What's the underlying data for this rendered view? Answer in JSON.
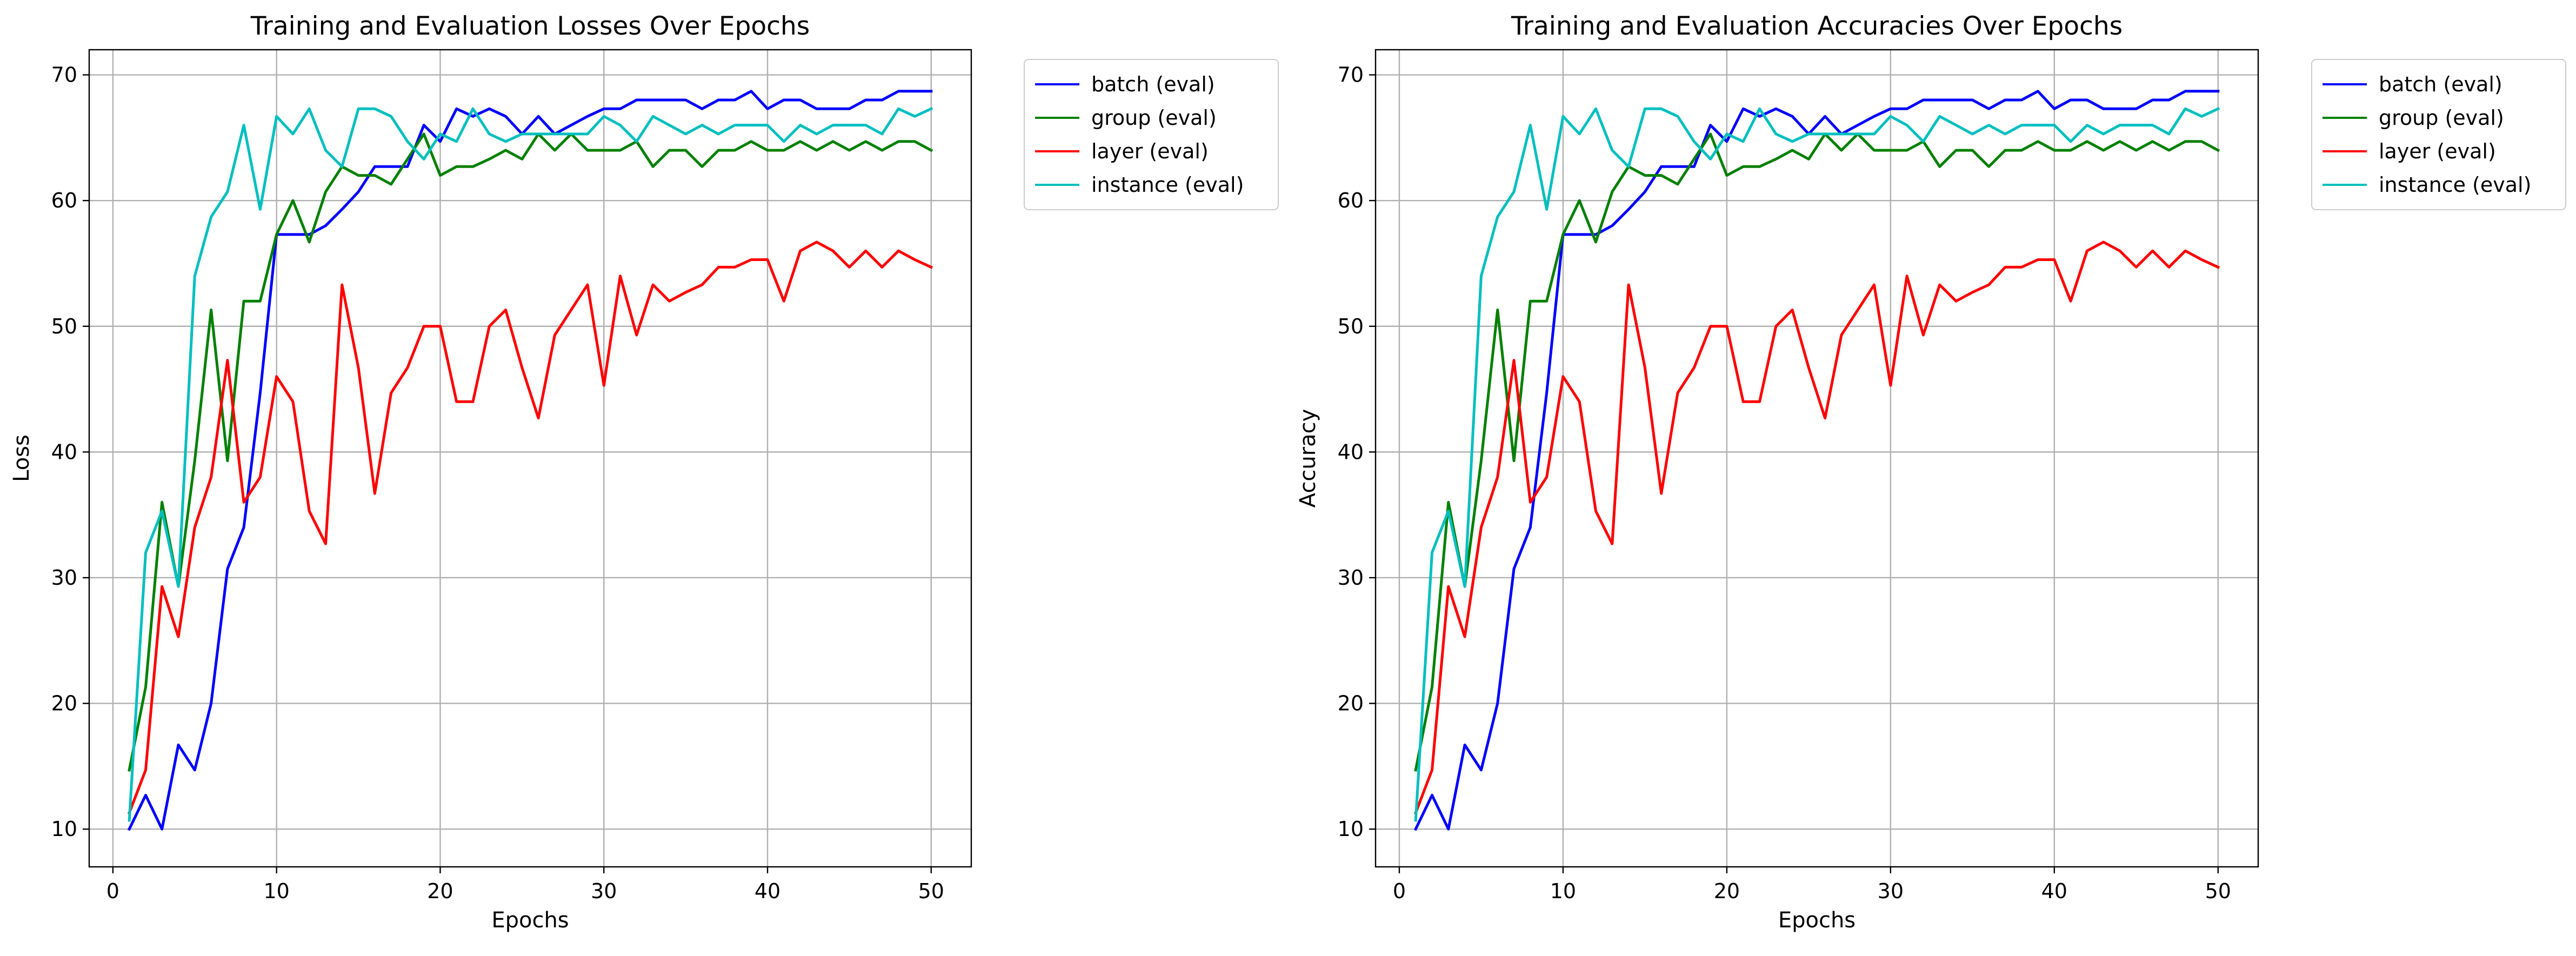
{
  "chart_data": [
    {
      "type": "line",
      "title": "Training and Evaluation Losses Over Epochs",
      "xlabel": "Epochs",
      "ylabel": "Loss",
      "xlim": [
        -1.45,
        52.45
      ],
      "ylim": [
        7,
        72
      ],
      "xticks": [
        0,
        10,
        20,
        30,
        40,
        50
      ],
      "yticks": [
        10,
        20,
        30,
        40,
        50,
        60,
        70
      ],
      "grid": true,
      "legend": "outside-upper-right",
      "x": [
        1,
        2,
        3,
        4,
        5,
        6,
        7,
        8,
        9,
        10,
        11,
        12,
        13,
        14,
        15,
        16,
        17,
        18,
        19,
        20,
        21,
        22,
        23,
        24,
        25,
        26,
        27,
        28,
        29,
        30,
        31,
        32,
        33,
        34,
        35,
        36,
        37,
        38,
        39,
        40,
        41,
        42,
        43,
        44,
        45,
        46,
        47,
        48,
        49,
        50
      ],
      "series": [
        {
          "name": "batch (eval)",
          "color": "#0000ff",
          "values": [
            10.0,
            12.7,
            10.0,
            16.7,
            14.7,
            20.0,
            30.7,
            34.0,
            44.7,
            57.3,
            57.3,
            57.3,
            58.0,
            59.3,
            60.7,
            62.7,
            62.7,
            62.7,
            66.0,
            64.7,
            67.3,
            66.7,
            67.3,
            66.7,
            65.3,
            66.7,
            65.3,
            66.0,
            66.7,
            67.3,
            67.3,
            68.0,
            68.0,
            68.0,
            68.0,
            67.3,
            68.0,
            68.0,
            68.7,
            67.3,
            68.0,
            68.0,
            67.3,
            67.3,
            67.3,
            68.0,
            68.0,
            68.7,
            68.7,
            68.7
          ]
        },
        {
          "name": "group (eval)",
          "color": "#008000",
          "values": [
            14.7,
            21.3,
            36.0,
            29.3,
            39.3,
            51.3,
            39.3,
            52.0,
            52.0,
            57.3,
            60.0,
            56.7,
            60.7,
            62.7,
            62.0,
            62.0,
            61.3,
            63.3,
            65.3,
            62.0,
            62.7,
            62.7,
            63.3,
            64.0,
            63.3,
            65.3,
            64.0,
            65.3,
            64.0,
            64.0,
            64.0,
            64.7,
            62.7,
            64.0,
            64.0,
            62.7,
            64.0,
            64.0,
            64.7,
            64.0,
            64.0,
            64.7,
            64.0,
            64.7,
            64.0,
            64.7,
            64.0,
            64.7,
            64.7,
            64.0
          ]
        },
        {
          "name": "layer (eval)",
          "color": "#ff0000",
          "values": [
            11.3,
            14.7,
            29.3,
            25.3,
            34.0,
            38.0,
            47.3,
            36.0,
            38.0,
            46.0,
            44.0,
            35.3,
            32.7,
            53.3,
            46.7,
            36.7,
            44.7,
            46.7,
            50.0,
            50.0,
            44.0,
            44.0,
            50.0,
            51.3,
            46.7,
            42.7,
            49.3,
            51.3,
            53.3,
            45.3,
            54.0,
            49.3,
            53.3,
            52.0,
            52.7,
            53.3,
            54.7,
            54.7,
            55.3,
            55.3,
            52.0,
            56.0,
            56.7,
            56.0,
            54.7,
            56.0,
            54.7,
            56.0,
            55.3,
            54.7
          ]
        },
        {
          "name": "instance (eval)",
          "color": "#00bfbf",
          "values": [
            10.7,
            32.0,
            35.3,
            29.3,
            54.0,
            58.7,
            60.7,
            66.0,
            59.3,
            66.7,
            65.3,
            67.3,
            64.0,
            62.7,
            67.3,
            67.3,
            66.7,
            64.7,
            63.3,
            65.3,
            64.7,
            67.3,
            65.3,
            64.7,
            65.3,
            65.3,
            65.3,
            65.3,
            65.3,
            66.7,
            66.0,
            64.7,
            66.7,
            66.0,
            65.3,
            66.0,
            65.3,
            66.0,
            66.0,
            66.0,
            64.7,
            66.0,
            65.3,
            66.0,
            66.0,
            66.0,
            65.3,
            67.3,
            66.7,
            67.3
          ]
        }
      ]
    },
    {
      "type": "line",
      "title": "Training and Evaluation Accuracies Over Epochs",
      "xlabel": "Epochs",
      "ylabel": "Accuracy",
      "xlim": [
        -1.45,
        52.45
      ],
      "ylim": [
        7,
        72
      ],
      "xticks": [
        0,
        10,
        20,
        30,
        40,
        50
      ],
      "yticks": [
        10,
        20,
        30,
        40,
        50,
        60,
        70
      ],
      "grid": true,
      "legend": "outside-upper-right",
      "x": [
        1,
        2,
        3,
        4,
        5,
        6,
        7,
        8,
        9,
        10,
        11,
        12,
        13,
        14,
        15,
        16,
        17,
        18,
        19,
        20,
        21,
        22,
        23,
        24,
        25,
        26,
        27,
        28,
        29,
        30,
        31,
        32,
        33,
        34,
        35,
        36,
        37,
        38,
        39,
        40,
        41,
        42,
        43,
        44,
        45,
        46,
        47,
        48,
        49,
        50
      ],
      "series": [
        {
          "name": "batch (eval)",
          "color": "#0000ff",
          "values": [
            10.0,
            12.7,
            10.0,
            16.7,
            14.7,
            20.0,
            30.7,
            34.0,
            44.7,
            57.3,
            57.3,
            57.3,
            58.0,
            59.3,
            60.7,
            62.7,
            62.7,
            62.7,
            66.0,
            64.7,
            67.3,
            66.7,
            67.3,
            66.7,
            65.3,
            66.7,
            65.3,
            66.0,
            66.7,
            67.3,
            67.3,
            68.0,
            68.0,
            68.0,
            68.0,
            67.3,
            68.0,
            68.0,
            68.7,
            67.3,
            68.0,
            68.0,
            67.3,
            67.3,
            67.3,
            68.0,
            68.0,
            68.7,
            68.7,
            68.7
          ]
        },
        {
          "name": "group (eval)",
          "color": "#008000",
          "values": [
            14.7,
            21.3,
            36.0,
            29.3,
            39.3,
            51.3,
            39.3,
            52.0,
            52.0,
            57.3,
            60.0,
            56.7,
            60.7,
            62.7,
            62.0,
            62.0,
            61.3,
            63.3,
            65.3,
            62.0,
            62.7,
            62.7,
            63.3,
            64.0,
            63.3,
            65.3,
            64.0,
            65.3,
            64.0,
            64.0,
            64.0,
            64.7,
            62.7,
            64.0,
            64.0,
            62.7,
            64.0,
            64.0,
            64.7,
            64.0,
            64.0,
            64.7,
            64.0,
            64.7,
            64.0,
            64.7,
            64.0,
            64.7,
            64.7,
            64.0
          ]
        },
        {
          "name": "layer (eval)",
          "color": "#ff0000",
          "values": [
            11.3,
            14.7,
            29.3,
            25.3,
            34.0,
            38.0,
            47.3,
            36.0,
            38.0,
            46.0,
            44.0,
            35.3,
            32.7,
            53.3,
            46.7,
            36.7,
            44.7,
            46.7,
            50.0,
            50.0,
            44.0,
            44.0,
            50.0,
            51.3,
            46.7,
            42.7,
            49.3,
            51.3,
            53.3,
            45.3,
            54.0,
            49.3,
            53.3,
            52.0,
            52.7,
            53.3,
            54.7,
            54.7,
            55.3,
            55.3,
            52.0,
            56.0,
            56.7,
            56.0,
            54.7,
            56.0,
            54.7,
            56.0,
            55.3,
            54.7
          ]
        },
        {
          "name": "instance (eval)",
          "color": "#00bfbf",
          "values": [
            10.7,
            32.0,
            35.3,
            29.3,
            54.0,
            58.7,
            60.7,
            66.0,
            59.3,
            66.7,
            65.3,
            67.3,
            64.0,
            62.7,
            67.3,
            67.3,
            66.7,
            64.7,
            63.3,
            65.3,
            64.7,
            67.3,
            65.3,
            64.7,
            65.3,
            65.3,
            65.3,
            65.3,
            65.3,
            66.7,
            66.0,
            64.7,
            66.7,
            66.0,
            65.3,
            66.0,
            65.3,
            66.0,
            66.0,
            66.0,
            64.7,
            66.0,
            65.3,
            66.0,
            66.0,
            66.0,
            65.3,
            67.3,
            66.7,
            67.3
          ]
        }
      ]
    }
  ]
}
